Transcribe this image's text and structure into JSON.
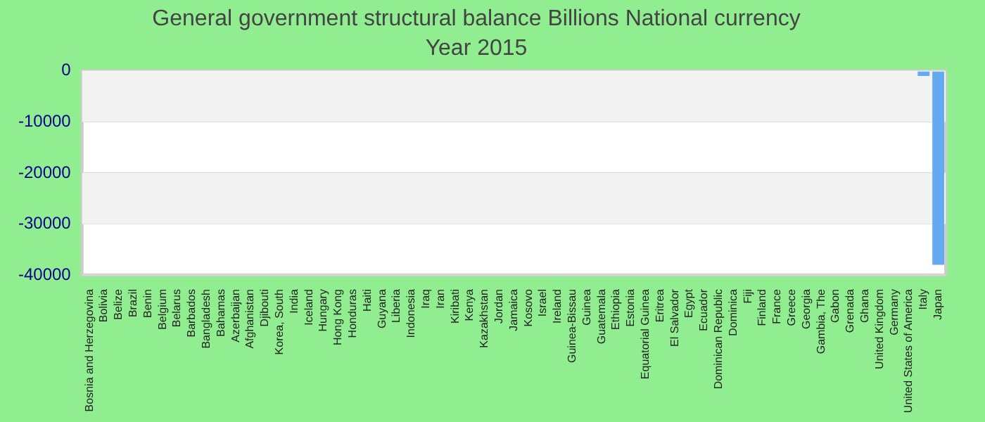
{
  "chart_data": {
    "type": "bar",
    "title": "General government structural balance Billions National currency",
    "subtitle": "Year 2015",
    "categories": [
      "Bosnia and Herzegovina",
      "Bolivia",
      "Belize",
      "Brazil",
      "Benin",
      "Belgium",
      "Belarus",
      "Barbados",
      "Bangladesh",
      "Bahamas",
      "Azerbaijan",
      "Afghanistan",
      "Djibouti",
      "Korea, South",
      "India",
      "Iceland",
      "Hungary",
      "Hong Kong",
      "Honduras",
      "Haiti",
      "Guyana",
      "Liberia",
      "Indonesia",
      "Iraq",
      "Iran",
      "Kiribati",
      "Kenya",
      "Kazakhstan",
      "Jordan",
      "Jamaica",
      "Kosovo",
      "Israel",
      "Ireland",
      "Guinea-Bissau",
      "Guinea",
      "Guatemala",
      "Ethiopia",
      "Estonia",
      "Equatorial Guinea",
      "Eritrea",
      "El Salvador",
      "Egypt",
      "Ecuador",
      "Dominican Republic",
      "Dominica",
      "Fiji",
      "Finland",
      "France",
      "Greece",
      "Georgia",
      "Gambia, The",
      "Gabon",
      "Grenada",
      "Ghana",
      "United Kingdom",
      "Germany",
      "United States of America",
      "Italy",
      "Japan"
    ],
    "values": [
      null,
      null,
      null,
      null,
      null,
      null,
      null,
      null,
      null,
      null,
      null,
      null,
      null,
      null,
      null,
      null,
      null,
      null,
      null,
      null,
      null,
      null,
      null,
      null,
      null,
      null,
      null,
      null,
      null,
      null,
      null,
      null,
      null,
      null,
      null,
      null,
      null,
      null,
      null,
      null,
      null,
      null,
      null,
      null,
      null,
      null,
      null,
      null,
      null,
      null,
      null,
      null,
      null,
      null,
      null,
      null,
      null,
      -1000,
      -38000
    ],
    "color": "#64aaf0",
    "ylim": [
      -40000,
      0
    ],
    "yticks": [
      0,
      -10000,
      -20000,
      -30000,
      -40000
    ],
    "grid": true
  }
}
